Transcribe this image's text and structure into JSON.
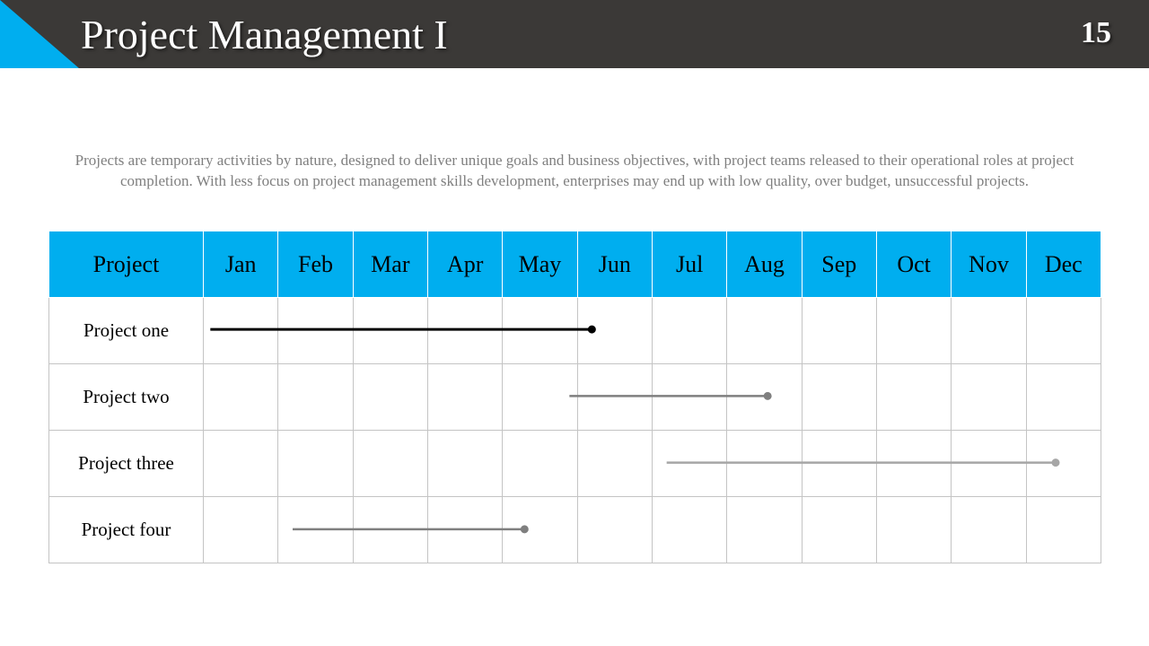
{
  "slide": {
    "title": "Project Management I",
    "number": "15",
    "intro": "Projects are temporary activities by nature, designed to deliver unique goals and business objectives, with project teams released to their operational roles at project completion. With less focus on project management skills development, enterprises may end up with low quality, over budget, unsuccessful projects."
  },
  "colors": {
    "header_bg": "#3b3937",
    "accent": "#00aeef",
    "text_gray": "#7f7f7f"
  },
  "table": {
    "project_header": "Project",
    "months": [
      "Jan",
      "Feb",
      "Mar",
      "Apr",
      "May",
      "Jun",
      "Jul",
      "Aug",
      "Sep",
      "Oct",
      "Nov",
      "Dec"
    ],
    "rows": [
      {
        "name": "Project one",
        "start_month": 1.1,
        "end_month": 6.2,
        "color": "#000000"
      },
      {
        "name": "Project two",
        "start_month": 5.9,
        "end_month": 8.55,
        "color": "#7f7f7f"
      },
      {
        "name": "Project three",
        "start_month": 7.2,
        "end_month": 12.4,
        "color": "#a6a6a6"
      },
      {
        "name": "Project four",
        "start_month": 2.2,
        "end_month": 5.3,
        "color": "#7f7f7f"
      }
    ]
  }
}
